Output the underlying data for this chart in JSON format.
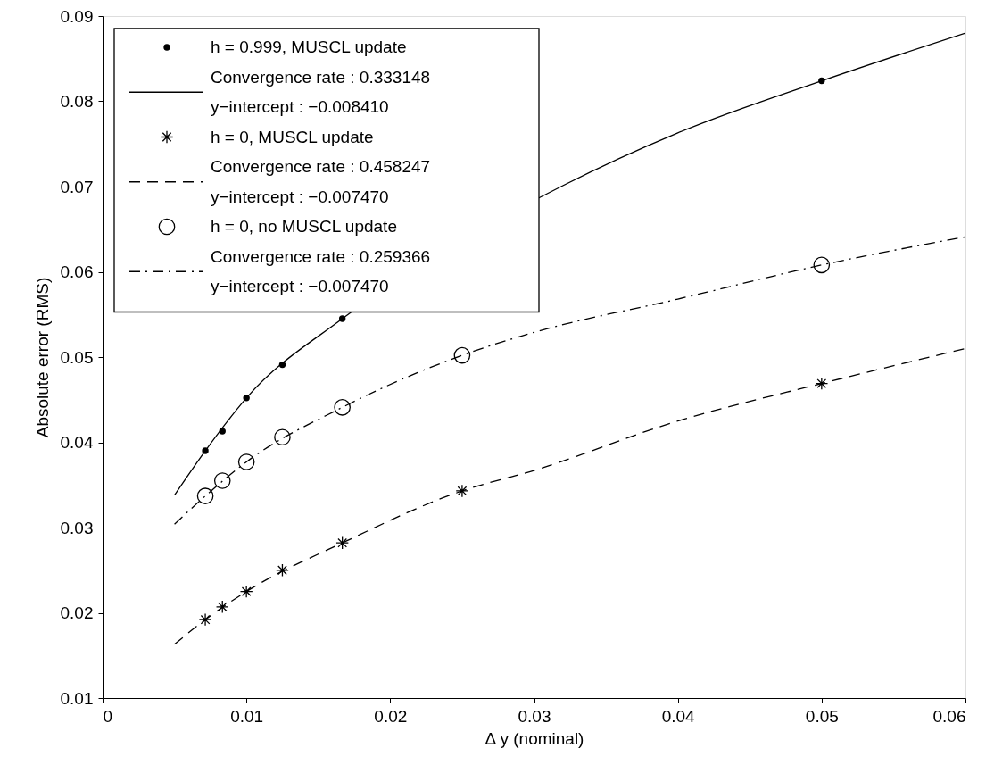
{
  "chart_data": {
    "type": "scatter",
    "xlabel": "Δ y (nominal)",
    "ylabel": "Absolute error (RMS)",
    "xlim": [
      0,
      0.06
    ],
    "xticks": [
      0,
      0.01,
      0.02,
      0.03,
      0.04,
      0.05,
      0.06
    ],
    "ylim": [
      0.01,
      0.09
    ],
    "yticks": [
      0.01,
      0.02,
      0.03,
      0.04,
      0.05,
      0.06,
      0.07,
      0.08,
      0.09
    ],
    "grid": false,
    "legend": "top left",
    "series": [
      {
        "name": "h = 0.999, MUSCL update",
        "marker": "circle",
        "color": "#000000",
        "x": [
          0.00714,
          0.00833,
          0.01,
          0.0125,
          0.01667,
          0.025,
          0.05
        ],
        "values": [
          0.039,
          0.0413,
          0.0452,
          0.0491,
          0.0545,
          null,
          0.0824
        ]
      },
      {
        "name": "Convergence rate : 0.333148\n y−intercept :  −0.008410",
        "type": "line",
        "line_style": "solid",
        "color": "#000000",
        "x": [
          0.005,
          0.00714,
          0.01,
          0.01667,
          0.032,
          0.04,
          0.05,
          0.06
        ],
        "values": [
          0.0338,
          0.039,
          0.0452,
          0.0545,
          0.0701,
          0.0763,
          0.0824,
          0.088
        ]
      },
      {
        "name": "h = 0, MUSCL update",
        "marker": "cross",
        "color": "#000000",
        "x": [
          0.00714,
          0.00833,
          0.01,
          0.0125,
          0.01667,
          0.025,
          0.05
        ],
        "values": [
          0.0192,
          0.0207,
          0.0225,
          0.025,
          0.0282,
          0.0343,
          0.0469
        ]
      },
      {
        "name": "Convergence rate : 0.458247\n y−intercept :  −0.007470",
        "type": "line",
        "line_style": "dashed",
        "color": "#000000",
        "x": [
          0.005,
          0.00714,
          0.01,
          0.01667,
          0.025,
          0.03,
          0.04,
          0.05,
          0.06
        ],
        "values": [
          0.0163,
          0.0192,
          0.0225,
          0.0282,
          0.0343,
          0.0367,
          0.0425,
          0.0469,
          0.051
        ]
      },
      {
        "name": "h = 0, no MUSCL update",
        "marker": "circle_open",
        "color": "#000000",
        "x": [
          0.00714,
          0.00833,
          0.01,
          0.0125,
          0.01667,
          0.025,
          0.05
        ],
        "values": [
          0.0337,
          0.0355,
          0.0377,
          0.0406,
          0.0441,
          0.0502,
          0.0608
        ]
      },
      {
        "name": "Convergence rate : 0.259366\n y−intercept :  −0.007470",
        "type": "line",
        "line_style": "dashdot",
        "color": "#000000",
        "x": [
          0.005,
          0.00714,
          0.01,
          0.01667,
          0.025,
          0.03,
          0.04,
          0.05,
          0.06
        ],
        "values": [
          0.0304,
          0.0337,
          0.0377,
          0.0441,
          0.0502,
          0.0529,
          0.0568,
          0.0608,
          0.0641
        ]
      }
    ]
  }
}
